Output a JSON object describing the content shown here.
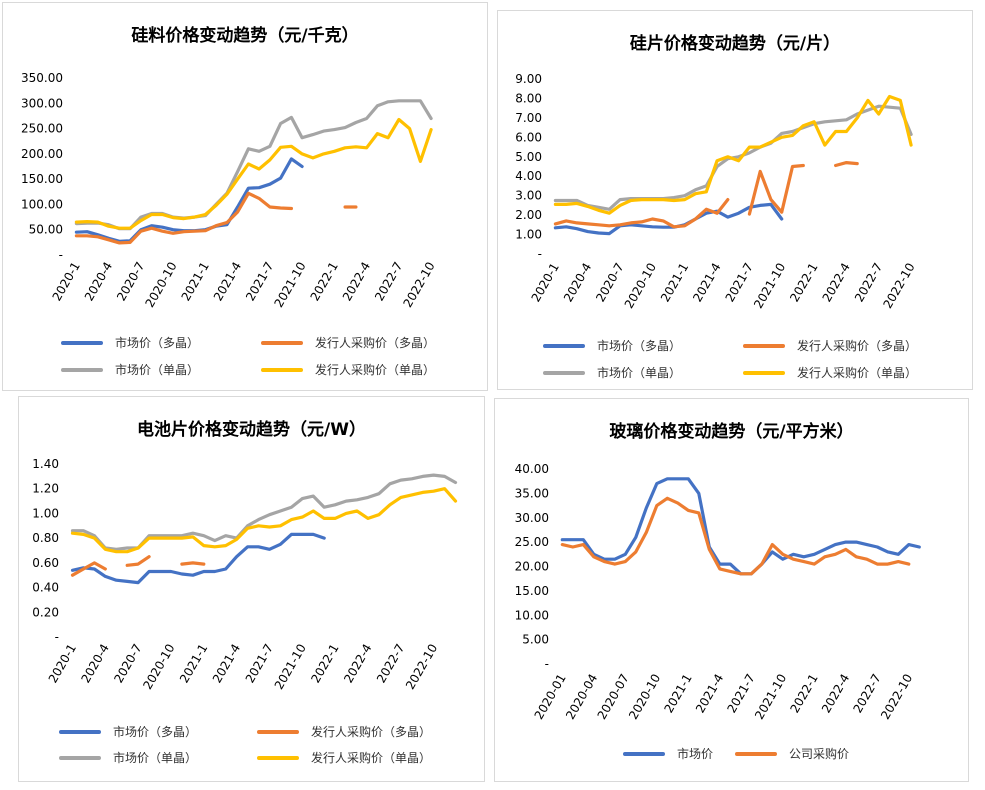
{
  "colors": {
    "blue": "#4472C4",
    "orange": "#ED7D31",
    "gray": "#A5A5A5",
    "yellow": "#FFC000"
  },
  "panels": [
    {
      "id": "silicon-material",
      "title": "硅料价格变动趋势（元/千克）",
      "legend": [
        "市场价（多晶）",
        "发行人采购价（多晶）",
        "市场价（单晶）",
        "发行人采购价（单晶）"
      ]
    },
    {
      "id": "wafer",
      "title": "硅片价格变动趋势（元/片）",
      "legend": [
        "市场价（多晶）",
        "发行人采购价（多晶）",
        "市场价（单晶）",
        "发行人采购价（单晶）"
      ]
    },
    {
      "id": "cell",
      "title": "电池片价格变动趋势（元/W）",
      "legend": [
        "市场价（多晶）",
        "发行人采购价（多晶）",
        "市场价（单晶）",
        "发行人采购价（单晶）"
      ]
    },
    {
      "id": "glass",
      "title": "玻璃价格变动趋势（元/平方米）",
      "legend": [
        "市场价",
        "公司采购价"
      ]
    }
  ],
  "chart_data": [
    {
      "type": "line",
      "title": "硅料价格变动趋势（元/千克）",
      "x_ticks": [
        "2020-1",
        "2020-4",
        "2020-7",
        "2020-10",
        "2021-1",
        "2021-4",
        "2021-7",
        "2021-10",
        "2022-1",
        "2022-4",
        "2022-7",
        "2022-10"
      ],
      "y_ticks": [
        "-",
        "50.00",
        "100.00",
        "150.00",
        "200.00",
        "250.00",
        "300.00",
        "350.00"
      ],
      "ylim": [
        0,
        350
      ],
      "n_points": 36,
      "series": [
        {
          "name": "市场价（多晶）",
          "color": "blue",
          "values": [
            45,
            46,
            40,
            33,
            27,
            28,
            50,
            58,
            55,
            50,
            48,
            48,
            50,
            57,
            60,
            95,
            132,
            133,
            140,
            152,
            190,
            175,
            null,
            null,
            null,
            null,
            null,
            null,
            null,
            null,
            null,
            null,
            null,
            null,
            null,
            null
          ]
        },
        {
          "name": "发行人采购价（多晶）",
          "color": "orange",
          "values": [
            38,
            38,
            36,
            30,
            24,
            25,
            47,
            53,
            47,
            43,
            46,
            47,
            48,
            58,
            64,
            85,
            122,
            112,
            95,
            93,
            92,
            null,
            null,
            null,
            null,
            95,
            95,
            null,
            null,
            null,
            null,
            null,
            null,
            null,
            null,
            null
          ]
        },
        {
          "name": "市场价（单晶）",
          "color": "gray",
          "values": [
            62,
            63,
            63,
            60,
            52,
            52,
            75,
            82,
            82,
            75,
            73,
            75,
            78,
            100,
            122,
            165,
            210,
            205,
            215,
            260,
            272,
            232,
            238,
            245,
            248,
            252,
            262,
            270,
            295,
            303,
            305,
            305,
            305,
            270,
            null,
            null
          ]
        },
        {
          "name": "发行人采购价（单晶）",
          "color": "yellow",
          "values": [
            65,
            66,
            65,
            57,
            53,
            53,
            68,
            80,
            80,
            74,
            72,
            75,
            80,
            98,
            120,
            150,
            180,
            170,
            188,
            213,
            215,
            200,
            192,
            200,
            205,
            212,
            214,
            212,
            240,
            232,
            268,
            250,
            185,
            248,
            null,
            null
          ]
        }
      ]
    },
    {
      "type": "line",
      "title": "硅片价格变动趋势（元/片）",
      "x_ticks": [
        "2020-1",
        "2020-4",
        "2020-7",
        "2020-10",
        "2021-1",
        "2021-4",
        "2021-7",
        "2021-10",
        "2022-1",
        "2022-4",
        "2022-7",
        "2022-10"
      ],
      "y_ticks": [
        "-",
        "1.00",
        "2.00",
        "3.00",
        "4.00",
        "5.00",
        "6.00",
        "7.00",
        "8.00",
        "9.00"
      ],
      "ylim": [
        0,
        9
      ],
      "n_points": 36,
      "series": [
        {
          "name": "市场价（多晶）",
          "color": "blue",
          "values": [
            1.35,
            1.4,
            1.3,
            1.15,
            1.08,
            1.05,
            1.45,
            1.5,
            1.45,
            1.4,
            1.38,
            1.38,
            1.5,
            1.8,
            2.1,
            2.2,
            1.9,
            2.1,
            2.4,
            2.5,
            2.55,
            1.8,
            null,
            null,
            null,
            null,
            null,
            null,
            null,
            null,
            null,
            null,
            null,
            null,
            null,
            null
          ]
        },
        {
          "name": "发行人采购价（多晶）",
          "color": "orange",
          "values": [
            1.55,
            1.7,
            1.6,
            1.55,
            1.5,
            1.45,
            1.5,
            1.6,
            1.65,
            1.8,
            1.7,
            1.4,
            1.45,
            1.8,
            2.3,
            2.1,
            2.8,
            null,
            2.05,
            4.25,
            2.8,
            2.15,
            4.5,
            4.55,
            null,
            null,
            4.55,
            4.7,
            4.65,
            null,
            null,
            null,
            null,
            null,
            null,
            null
          ]
        },
        {
          "name": "市场价（单晶）",
          "color": "gray",
          "values": [
            2.75,
            2.75,
            2.75,
            2.5,
            2.4,
            2.3,
            2.8,
            2.85,
            2.85,
            2.85,
            2.85,
            2.9,
            3.0,
            3.3,
            3.5,
            4.5,
            4.9,
            5.0,
            5.2,
            5.5,
            5.7,
            6.2,
            6.3,
            6.5,
            6.7,
            6.8,
            6.85,
            6.9,
            7.2,
            7.4,
            7.6,
            7.55,
            7.5,
            6.15,
            null,
            null
          ]
        },
        {
          "name": "发行人采购价（单晶）",
          "color": "yellow",
          "values": [
            2.55,
            2.55,
            2.6,
            2.45,
            2.25,
            2.1,
            2.5,
            2.75,
            2.8,
            2.8,
            2.8,
            2.75,
            2.8,
            3.1,
            3.2,
            4.8,
            5.0,
            4.8,
            5.5,
            5.5,
            5.75,
            6.0,
            6.1,
            6.6,
            6.8,
            5.6,
            6.3,
            6.3,
            7.0,
            7.9,
            7.2,
            8.1,
            7.9,
            5.6,
            null,
            null
          ]
        }
      ]
    },
    {
      "type": "line",
      "title": "电池片价格变动趋势（元/W）",
      "x_ticks": [
        "2020-1",
        "2020-4",
        "2020-7",
        "2020-10",
        "2021-1",
        "2021-4",
        "2021-7",
        "2021-10",
        "2022-1",
        "2022-4",
        "2022-7",
        "2022-10"
      ],
      "y_ticks": [
        "-",
        "0.20",
        "0.40",
        "0.60",
        "0.80",
        "1.00",
        "1.20",
        "1.40"
      ],
      "ylim": [
        0,
        1.4
      ],
      "n_points": 36,
      "series": [
        {
          "name": "市场价（多晶）",
          "color": "blue",
          "values": [
            0.54,
            0.56,
            0.55,
            0.49,
            0.46,
            0.45,
            0.44,
            0.53,
            0.53,
            0.53,
            0.51,
            0.5,
            0.53,
            0.53,
            0.55,
            0.65,
            0.73,
            0.73,
            0.71,
            0.75,
            0.83,
            0.83,
            0.83,
            0.8,
            null,
            null,
            null,
            null,
            null,
            null,
            null,
            null,
            null,
            null,
            null,
            null
          ]
        },
        {
          "name": "发行人采购价（多晶）",
          "color": "orange",
          "values": [
            0.5,
            0.55,
            0.6,
            0.55,
            null,
            0.58,
            0.59,
            0.65,
            null,
            null,
            0.59,
            0.6,
            0.59,
            null,
            null,
            null,
            null,
            null,
            null,
            null,
            null,
            null,
            null,
            null,
            null,
            null,
            null,
            null,
            null,
            null,
            null,
            null,
            null,
            null,
            null,
            null
          ]
        },
        {
          "name": "市场价（单晶）",
          "color": "gray",
          "values": [
            0.86,
            0.86,
            0.82,
            0.72,
            0.71,
            0.72,
            0.72,
            0.82,
            0.82,
            0.82,
            0.82,
            0.84,
            0.82,
            0.78,
            0.82,
            0.8,
            0.9,
            0.95,
            0.99,
            1.02,
            1.05,
            1.12,
            1.14,
            1.05,
            1.07,
            1.1,
            1.11,
            1.13,
            1.16,
            1.24,
            1.27,
            1.28,
            1.3,
            1.31,
            1.3,
            1.25
          ]
        },
        {
          "name": "发行人采购价（单晶）",
          "color": "yellow",
          "values": [
            0.84,
            0.83,
            0.8,
            0.71,
            0.69,
            0.69,
            0.72,
            0.8,
            0.8,
            0.8,
            0.8,
            0.81,
            0.74,
            0.73,
            0.74,
            0.79,
            0.88,
            0.9,
            0.89,
            0.9,
            0.95,
            0.97,
            1.02,
            0.96,
            0.96,
            1.0,
            1.02,
            0.96,
            0.99,
            1.07,
            1.13,
            1.15,
            1.17,
            1.18,
            1.2,
            1.1
          ]
        }
      ]
    },
    {
      "type": "line",
      "title": "玻璃价格变动趋势（元/平方米）",
      "x_ticks": [
        "2020-01",
        "2020-04",
        "2020-07",
        "2020-10",
        "2021-1",
        "2021-4",
        "2021-7",
        "2021-10",
        "2022-1",
        "2022-4",
        "2022-7",
        "2022-10"
      ],
      "y_ticks": [
        "-",
        "5.00",
        "10.00",
        "15.00",
        "20.00",
        "25.00",
        "30.00",
        "35.00",
        "40.00"
      ],
      "ylim": [
        0,
        40
      ],
      "n_points": 36,
      "series": [
        {
          "name": "市场价",
          "color": "blue",
          "values": [
            25.5,
            25.5,
            25.5,
            22.5,
            21.5,
            21.5,
            22.5,
            26,
            32,
            37,
            38,
            38,
            38,
            35,
            24,
            20.5,
            20.5,
            18.5,
            18.5,
            20.5,
            23,
            21.5,
            22.5,
            22,
            22.5,
            23.5,
            24.5,
            25,
            25,
            24.5,
            24,
            23,
            22.5,
            24.5,
            24,
            null
          ]
        },
        {
          "name": "公司采购价",
          "color": "orange",
          "values": [
            24.5,
            24,
            24.5,
            22,
            21,
            20.5,
            21,
            23,
            27,
            32.5,
            34,
            33,
            31.5,
            31,
            23.5,
            19.5,
            19,
            18.5,
            18.5,
            20.5,
            24.5,
            22.5,
            21.5,
            21,
            20.5,
            22,
            22.5,
            23.5,
            22,
            21.5,
            20.5,
            20.5,
            21,
            20.5,
            null,
            null
          ]
        }
      ]
    }
  ]
}
